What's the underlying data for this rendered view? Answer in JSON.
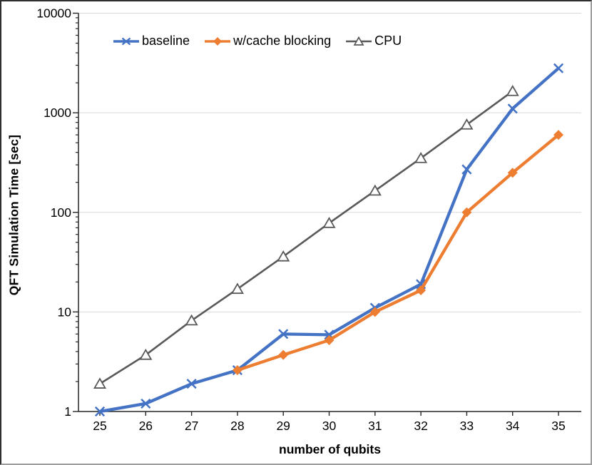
{
  "chart_data": {
    "type": "line",
    "title": "",
    "xlabel": "number of qubits",
    "ylabel": "QFT Simulation Time [sec]",
    "x": [
      25,
      26,
      27,
      28,
      29,
      30,
      31,
      32,
      33,
      34,
      35
    ],
    "yscale": "log",
    "ylim": [
      1,
      10000
    ],
    "yticks": [
      1,
      10,
      100,
      1000,
      10000
    ],
    "ytick_labels": [
      "1",
      "10",
      "100",
      "1000",
      "10000"
    ],
    "grid": "major-horizontal",
    "legend_position": "top-center",
    "colors": {
      "baseline": "#4472C4",
      "cache": "#ED7D31",
      "cpu": "#595959",
      "gridline": "#D9D9D9",
      "axis": "#262626"
    },
    "series": [
      {
        "name": "baseline",
        "color": "#4472C4",
        "marker": "x",
        "values": [
          1.0,
          1.2,
          1.9,
          2.6,
          6.0,
          5.9,
          11,
          19,
          270,
          1100,
          2800
        ]
      },
      {
        "name": "w/cache blocking",
        "color": "#ED7D31",
        "marker": "diamond",
        "values": [
          null,
          null,
          null,
          2.6,
          3.7,
          5.2,
          10,
          16.5,
          100,
          250,
          600
        ]
      },
      {
        "name": "CPU",
        "color": "#595959",
        "marker": "triangle-open",
        "values": [
          1.9,
          3.7,
          8.2,
          17,
          36,
          78,
          165,
          350,
          760,
          1650,
          null
        ]
      }
    ]
  }
}
